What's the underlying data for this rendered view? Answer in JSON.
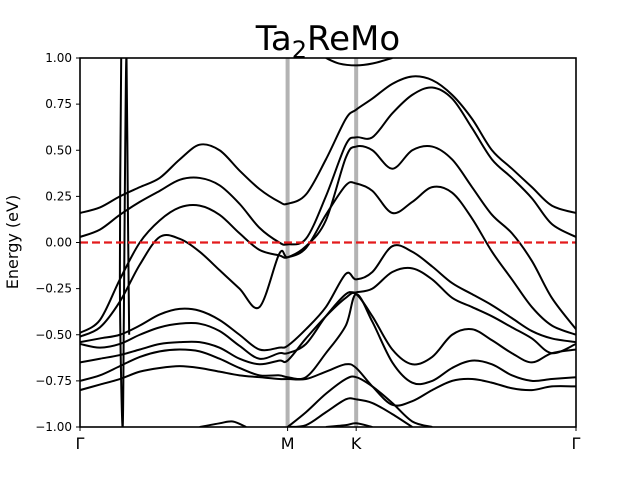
{
  "chart_data": {
    "type": "line",
    "title_main": "Ta",
    "title_sub": "2",
    "title_rest": "ReMo",
    "ylabel": "Energy (eV)",
    "ylim": [
      -1.0,
      1.0
    ],
    "xlim": [
      0,
      3.732
    ],
    "y_ticks": [
      {
        "value": 1.0,
        "label": "1.00"
      },
      {
        "value": 0.75,
        "label": "0.75"
      },
      {
        "value": 0.5,
        "label": "0.50"
      },
      {
        "value": 0.25,
        "label": "0.25"
      },
      {
        "value": 0.0,
        "label": "0.00"
      },
      {
        "value": -0.25,
        "label": "−0.25"
      },
      {
        "value": -0.5,
        "label": "−0.50"
      },
      {
        "value": -0.75,
        "label": "−0.75"
      },
      {
        "value": -1.0,
        "label": "−1.00"
      }
    ],
    "k_points": [
      {
        "label": "Γ",
        "x": 0
      },
      {
        "label": "M",
        "x": 1.562
      },
      {
        "label": "K",
        "x": 2.078
      },
      {
        "label": "Γ",
        "x": 3.732
      }
    ],
    "fermi_level": 0.0,
    "colors": {
      "bands": "#000000",
      "fermi": "#e31a1c",
      "kpath_lines": "#b3b3b3"
    },
    "series": [
      {
        "x": [
          0,
          0.15,
          0.3,
          0.45,
          0.6,
          0.75,
          0.9,
          1.05,
          1.2,
          1.35,
          1.5,
          1.562,
          1.7,
          1.85,
          2.0,
          2.078,
          2.2,
          2.35,
          2.5,
          2.65,
          2.8,
          2.95,
          3.1,
          3.25,
          3.4,
          3.55,
          3.732
        ],
        "y": [
          0.16,
          0.19,
          0.25,
          0.3,
          0.35,
          0.45,
          0.53,
          0.5,
          0.39,
          0.29,
          0.22,
          0.21,
          0.26,
          0.45,
          0.67,
          0.72,
          0.78,
          0.86,
          0.9,
          0.88,
          0.8,
          0.67,
          0.5,
          0.4,
          0.3,
          0.2,
          0.16
        ]
      },
      {
        "x": [
          0,
          0.15,
          0.3,
          0.45,
          0.6,
          0.75,
          0.9,
          1.05,
          1.2,
          1.35,
          1.5,
          1.562,
          1.7,
          1.85,
          2.0,
          2.078,
          2.2,
          2.35,
          2.5,
          2.65,
          2.8,
          2.95,
          3.1,
          3.25,
          3.4,
          3.55,
          3.732
        ],
        "y": [
          0.03,
          0.07,
          0.15,
          0.22,
          0.28,
          0.34,
          0.35,
          0.31,
          0.21,
          0.08,
          0.0,
          -0.01,
          0.02,
          0.25,
          0.53,
          0.57,
          0.57,
          0.7,
          0.8,
          0.84,
          0.78,
          0.62,
          0.45,
          0.35,
          0.24,
          0.1,
          0.03
        ]
      },
      {
        "x": [
          0,
          0.15,
          0.3,
          0.45,
          0.6,
          0.75,
          0.9,
          1.05,
          1.2,
          1.35,
          1.5,
          1.562,
          1.7,
          1.85,
          2.0,
          2.078,
          2.2,
          2.35,
          2.5,
          2.65,
          2.8,
          2.95,
          3.1,
          3.25,
          3.4,
          3.55,
          3.732
        ],
        "y": [
          -0.49,
          -0.42,
          -0.2,
          0.0,
          0.12,
          0.19,
          0.2,
          0.15,
          0.05,
          -0.04,
          -0.07,
          -0.08,
          -0.02,
          0.12,
          0.46,
          0.52,
          0.5,
          0.4,
          0.5,
          0.52,
          0.45,
          0.3,
          0.15,
          0.05,
          -0.1,
          -0.3,
          -0.47
        ]
      },
      {
        "x": [
          0,
          0.15,
          0.3,
          0.45,
          0.6,
          0.75,
          0.9,
          1.05,
          1.2,
          1.35,
          1.5,
          1.562,
          1.7,
          1.85,
          2.0,
          2.078,
          2.2,
          2.35,
          2.5,
          2.65,
          2.8,
          2.95,
          3.1,
          3.25,
          3.4,
          3.55,
          3.732
        ],
        "y": [
          -0.51,
          -0.46,
          -0.32,
          -0.12,
          0.03,
          0.02,
          -0.05,
          -0.15,
          -0.25,
          -0.35,
          -0.06,
          -0.08,
          -0.03,
          0.15,
          0.31,
          0.32,
          0.28,
          0.16,
          0.22,
          0.3,
          0.27,
          0.13,
          -0.05,
          -0.2,
          -0.35,
          -0.45,
          -0.5
        ]
      },
      {
        "x": [
          0,
          0.15,
          0.3,
          0.45,
          0.6,
          0.75,
          0.9,
          1.05,
          1.2,
          1.35,
          1.5,
          1.562,
          1.7,
          1.85,
          2.0,
          2.078,
          2.2,
          2.35,
          2.5,
          2.65,
          2.8,
          2.95,
          3.1,
          3.25,
          3.4,
          3.55,
          3.732
        ],
        "y": [
          -0.54,
          -0.52,
          -0.5,
          -0.45,
          -0.39,
          -0.36,
          -0.37,
          -0.42,
          -0.5,
          -0.58,
          -0.57,
          -0.56,
          -0.47,
          -0.35,
          -0.17,
          -0.2,
          -0.16,
          -0.02,
          -0.05,
          -0.13,
          -0.22,
          -0.28,
          -0.34,
          -0.41,
          -0.48,
          -0.52,
          -0.54
        ]
      },
      {
        "x": [
          0,
          0.15,
          0.3,
          0.45,
          0.6,
          0.75,
          0.9,
          1.05,
          1.2,
          1.35,
          1.5,
          1.562,
          1.7,
          1.85,
          2.0,
          2.078,
          2.2,
          2.35,
          2.5,
          2.65,
          2.8,
          2.95,
          3.1,
          3.25,
          3.4,
          3.55,
          3.732
        ],
        "y": [
          -0.55,
          -0.57,
          -0.55,
          -0.5,
          -0.46,
          -0.44,
          -0.44,
          -0.48,
          -0.56,
          -0.63,
          -0.6,
          -0.6,
          -0.55,
          -0.4,
          -0.28,
          -0.27,
          -0.25,
          -0.16,
          -0.14,
          -0.2,
          -0.3,
          -0.35,
          -0.4,
          -0.46,
          -0.52,
          -0.6,
          -0.55
        ]
      },
      {
        "x": [
          0,
          0.15,
          0.3,
          0.45,
          0.6,
          0.75,
          0.9,
          1.05,
          1.2,
          1.35,
          1.5,
          1.562,
          1.7,
          1.85,
          2.0,
          2.078,
          2.2,
          2.35,
          2.5,
          2.65,
          2.8,
          2.95,
          3.1,
          3.25,
          3.4,
          3.55,
          3.732
        ],
        "y": [
          -0.65,
          -0.63,
          -0.61,
          -0.58,
          -0.55,
          -0.54,
          -0.54,
          -0.57,
          -0.63,
          -0.66,
          -0.64,
          -0.64,
          -0.52,
          -0.4,
          -0.3,
          -0.28,
          -0.4,
          -0.58,
          -0.66,
          -0.62,
          -0.5,
          -0.47,
          -0.53,
          -0.6,
          -0.65,
          -0.6,
          -0.58
        ]
      },
      {
        "x": [
          0,
          0.15,
          0.3,
          0.45,
          0.6,
          0.75,
          0.9,
          1.05,
          1.2,
          1.35,
          1.5,
          1.562,
          1.7,
          1.85,
          2.0,
          2.078,
          2.2,
          2.35,
          2.5,
          2.65,
          2.8,
          2.95,
          3.1,
          3.25,
          3.4,
          3.55,
          3.732
        ],
        "y": [
          -0.75,
          -0.72,
          -0.67,
          -0.62,
          -0.59,
          -0.58,
          -0.59,
          -0.63,
          -0.68,
          -0.72,
          -0.72,
          -0.73,
          -0.73,
          -0.6,
          -0.45,
          -0.28,
          -0.43,
          -0.65,
          -0.76,
          -0.75,
          -0.68,
          -0.64,
          -0.66,
          -0.72,
          -0.75,
          -0.74,
          -0.73
        ]
      },
      {
        "x": [
          0,
          0.15,
          0.3,
          0.45,
          0.6,
          0.75,
          0.9,
          1.05,
          1.2,
          1.35,
          1.5,
          1.562,
          1.7,
          1.85,
          2.0,
          2.078,
          2.2,
          2.35,
          2.5,
          2.65,
          2.8,
          2.95,
          3.1,
          3.25,
          3.4,
          3.55,
          3.732
        ],
        "y": [
          -0.8,
          -0.77,
          -0.74,
          -0.7,
          -0.68,
          -0.67,
          -0.68,
          -0.7,
          -0.72,
          -0.73,
          -0.74,
          -0.74,
          -0.74,
          -0.7,
          -0.66,
          -0.68,
          -0.78,
          -0.88,
          -0.86,
          -0.8,
          -0.75,
          -0.74,
          -0.76,
          -0.79,
          -0.8,
          -0.78,
          -0.78
        ]
      },
      {
        "x": [
          1.562,
          1.7,
          1.85,
          2.0,
          2.078,
          2.2,
          2.35,
          2.5,
          2.65
        ],
        "y": [
          -1.0,
          -0.92,
          -0.82,
          -0.74,
          -0.73,
          -0.78,
          -0.87,
          -0.97,
          -1.0
        ]
      },
      {
        "x": [
          1.562,
          1.7,
          1.85,
          2.0,
          2.078,
          2.2,
          2.35,
          2.5
        ],
        "y": [
          -1.0,
          -0.99,
          -0.92,
          -0.85,
          -0.85,
          -0.87,
          -0.93,
          -1.0
        ]
      },
      {
        "x": [
          0.9,
          1.05,
          1.15,
          1.25
        ],
        "y": [
          -1.0,
          -0.98,
          -0.97,
          -1.0
        ]
      },
      {
        "x": [
          1.85,
          2.0,
          2.078,
          2.2
        ],
        "y": [
          -1.0,
          -0.99,
          -0.98,
          -1.0
        ]
      },
      {
        "x": [
          1.85,
          1.95,
          2.078,
          2.2,
          2.35
        ],
        "y": [
          1.0,
          0.97,
          0.96,
          0.97,
          1.0
        ]
      },
      {
        "x": [
          0.31,
          0.3,
          0.32,
          0.33,
          0.34,
          0.35,
          0.36,
          0.37
        ],
        "y": [
          1.0,
          -0.2,
          -1.0,
          -0.4,
          0.5,
          1.0,
          0.2,
          -0.5
        ]
      }
    ]
  }
}
